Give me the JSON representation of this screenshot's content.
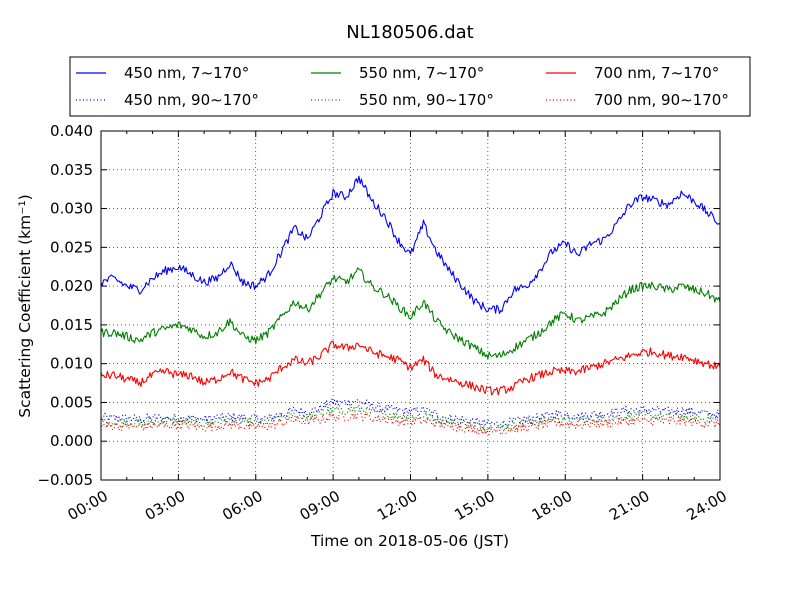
{
  "chart_data": {
    "type": "line",
    "title": "NL180506.dat",
    "xlabel": "Time on 2018-05-06 (JST)",
    "ylabel": "Scattering Coefficient (km⁻¹)",
    "xlim": [
      "00:00",
      "24:00"
    ],
    "ylim": [
      -0.005,
      0.04
    ],
    "x_ticks": [
      "00:00",
      "03:00",
      "06:00",
      "09:00",
      "12:00",
      "15:00",
      "18:00",
      "21:00",
      "24:00"
    ],
    "y_ticks": [
      "−0.005",
      "0.000",
      "0.005",
      "0.010",
      "0.015",
      "0.020",
      "0.025",
      "0.030",
      "0.035",
      "0.040"
    ],
    "grid": true,
    "legend_position": "top",
    "x_hours": [
      0,
      0.5,
      1,
      1.5,
      2,
      2.5,
      3,
      3.5,
      4,
      4.5,
      5,
      5.5,
      6,
      6.5,
      7,
      7.5,
      8,
      8.5,
      9,
      9.5,
      10,
      10.5,
      11,
      11.5,
      12,
      12.5,
      13,
      13.5,
      14,
      14.5,
      15,
      15.5,
      16,
      16.5,
      17,
      17.5,
      18,
      18.5,
      19,
      19.5,
      20,
      20.5,
      21,
      21.5,
      22,
      22.5,
      23,
      23.5,
      24
    ],
    "series": [
      {
        "name": "450 nm, 7∼170°",
        "color": "#0000ff",
        "style": "solid",
        "values": [
          0.0205,
          0.021,
          0.02,
          0.0195,
          0.021,
          0.022,
          0.0225,
          0.0215,
          0.0205,
          0.021,
          0.023,
          0.0205,
          0.02,
          0.0215,
          0.0245,
          0.0275,
          0.026,
          0.029,
          0.032,
          0.0315,
          0.034,
          0.031,
          0.029,
          0.026,
          0.024,
          0.028,
          0.0245,
          0.022,
          0.02,
          0.018,
          0.017,
          0.017,
          0.0195,
          0.02,
          0.022,
          0.0245,
          0.0255,
          0.024,
          0.0255,
          0.026,
          0.028,
          0.0305,
          0.0315,
          0.031,
          0.0305,
          0.032,
          0.031,
          0.0295,
          0.028
        ]
      },
      {
        "name": "550 nm, 7∼170°",
        "color": "#008000",
        "style": "solid",
        "values": [
          0.014,
          0.014,
          0.0135,
          0.013,
          0.014,
          0.0145,
          0.015,
          0.0145,
          0.0135,
          0.014,
          0.0155,
          0.0135,
          0.013,
          0.014,
          0.016,
          0.018,
          0.017,
          0.019,
          0.021,
          0.0205,
          0.022,
          0.02,
          0.019,
          0.0175,
          0.016,
          0.018,
          0.0155,
          0.014,
          0.013,
          0.012,
          0.011,
          0.011,
          0.012,
          0.013,
          0.014,
          0.0155,
          0.0165,
          0.0155,
          0.016,
          0.0165,
          0.018,
          0.0195,
          0.02,
          0.02,
          0.0195,
          0.02,
          0.0195,
          0.019,
          0.018
        ]
      },
      {
        "name": "700 nm, 7∼170°",
        "color": "#ff0000",
        "style": "solid",
        "values": [
          0.0085,
          0.0085,
          0.008,
          0.0075,
          0.0085,
          0.009,
          0.0085,
          0.0085,
          0.0075,
          0.008,
          0.009,
          0.008,
          0.0075,
          0.008,
          0.0095,
          0.0105,
          0.01,
          0.011,
          0.0125,
          0.012,
          0.0125,
          0.0115,
          0.011,
          0.0105,
          0.0095,
          0.0105,
          0.0085,
          0.008,
          0.0075,
          0.007,
          0.0065,
          0.0065,
          0.007,
          0.008,
          0.0085,
          0.009,
          0.009,
          0.009,
          0.0095,
          0.01,
          0.0105,
          0.011,
          0.0115,
          0.0115,
          0.011,
          0.011,
          0.0105,
          0.01,
          0.0095
        ]
      },
      {
        "name": "450 nm, 90∼170°",
        "color": "#0000ff",
        "style": "dotted",
        "values": [
          0.003,
          0.003,
          0.003,
          0.0028,
          0.003,
          0.003,
          0.003,
          0.003,
          0.0028,
          0.003,
          0.0032,
          0.003,
          0.0028,
          0.003,
          0.0035,
          0.004,
          0.0038,
          0.0042,
          0.005,
          0.005,
          0.0052,
          0.0045,
          0.0042,
          0.004,
          0.0038,
          0.004,
          0.0035,
          0.003,
          0.0028,
          0.0025,
          0.0022,
          0.0022,
          0.0025,
          0.0028,
          0.003,
          0.0035,
          0.0035,
          0.0032,
          0.0035,
          0.0035,
          0.0038,
          0.004,
          0.004,
          0.004,
          0.0038,
          0.004,
          0.0038,
          0.0035,
          0.0035
        ]
      },
      {
        "name": "550 nm, 90∼170°",
        "color": "#008000",
        "style": "dotted",
        "values": [
          0.0025,
          0.0025,
          0.0025,
          0.0023,
          0.0025,
          0.0025,
          0.0026,
          0.0025,
          0.0023,
          0.0025,
          0.0027,
          0.0025,
          0.0023,
          0.0025,
          0.003,
          0.0033,
          0.0032,
          0.0035,
          0.004,
          0.004,
          0.0042,
          0.0037,
          0.0035,
          0.0033,
          0.0031,
          0.0033,
          0.0029,
          0.0025,
          0.0023,
          0.0021,
          0.0018,
          0.0018,
          0.0021,
          0.0023,
          0.0025,
          0.0029,
          0.0029,
          0.0027,
          0.0029,
          0.0029,
          0.0031,
          0.0033,
          0.0033,
          0.0033,
          0.0031,
          0.0033,
          0.0031,
          0.0029,
          0.0028
        ]
      },
      {
        "name": "700 nm, 90∼170°",
        "color": "#ff0000",
        "style": "dotted",
        "values": [
          0.002,
          0.002,
          0.002,
          0.0018,
          0.002,
          0.002,
          0.0021,
          0.002,
          0.0018,
          0.002,
          0.0022,
          0.002,
          0.0018,
          0.002,
          0.0024,
          0.0027,
          0.0026,
          0.0028,
          0.0032,
          0.0032,
          0.0034,
          0.003,
          0.0028,
          0.0026,
          0.0025,
          0.0026,
          0.0023,
          0.002,
          0.0018,
          0.0016,
          0.0014,
          0.0014,
          0.0016,
          0.0018,
          0.002,
          0.0023,
          0.0023,
          0.0021,
          0.0023,
          0.0023,
          0.0025,
          0.0026,
          0.0026,
          0.0026,
          0.0025,
          0.0026,
          0.0025,
          0.0023,
          0.0022
        ]
      }
    ]
  }
}
